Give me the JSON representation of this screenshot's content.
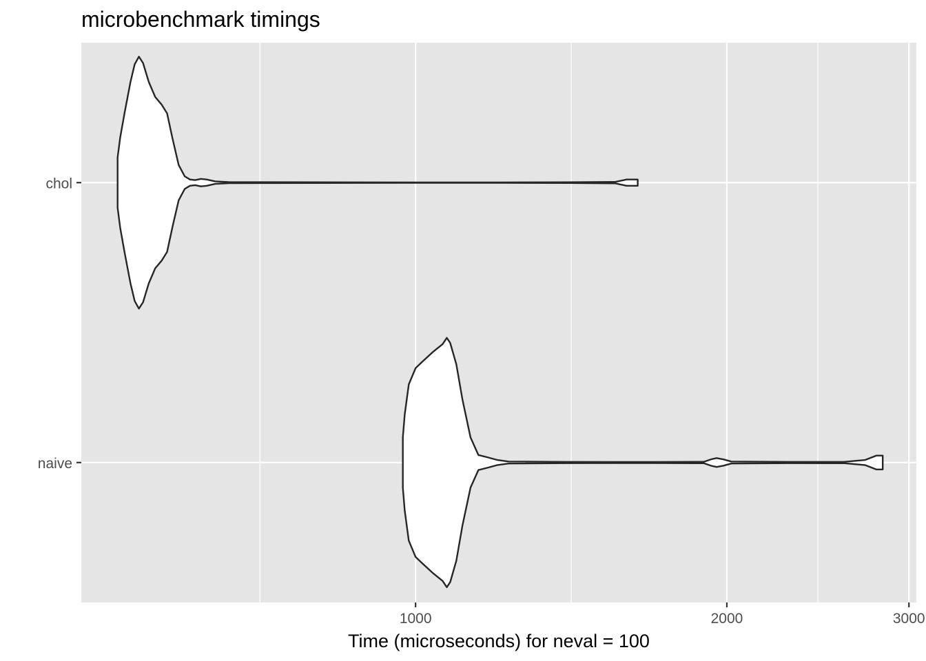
{
  "chart_data": {
    "type": "violin",
    "title": "microbenchmark timings",
    "xlabel": "Time (microseconds) for neval = 100",
    "ylabel": "",
    "x_scale": "log10",
    "xlim": [
      475,
      3050
    ],
    "x_ticks": [
      1000,
      2000,
      3000
    ],
    "x_tick_labels": [
      "1000",
      "2000",
      "3000"
    ],
    "categories": [
      "chol",
      "naive"
    ],
    "grid": true,
    "colors": {
      "panel": "#e5e5e5",
      "grid": "#ffffff",
      "fill": "#ffffff",
      "outline": "#262626"
    },
    "series": [
      {
        "name": "chol",
        "range": [
          515,
          1640
        ],
        "profile": [
          [
            515,
            0.2
          ],
          [
            518,
            0.36
          ],
          [
            523,
            0.55
          ],
          [
            530,
            0.8
          ],
          [
            535,
            0.94
          ],
          [
            540,
            1.0
          ],
          [
            545,
            0.95
          ],
          [
            552,
            0.8
          ],
          [
            560,
            0.68
          ],
          [
            568,
            0.62
          ],
          [
            575,
            0.55
          ],
          [
            582,
            0.35
          ],
          [
            590,
            0.14
          ],
          [
            598,
            0.05
          ],
          [
            605,
            0.025
          ],
          [
            612,
            0.02
          ],
          [
            620,
            0.03
          ],
          [
            628,
            0.025
          ],
          [
            640,
            0.01
          ],
          [
            660,
            0.004
          ],
          [
            800,
            0.003
          ],
          [
            1000,
            0.002
          ],
          [
            1200,
            0.002
          ],
          [
            1400,
            0.003
          ],
          [
            1560,
            0.006
          ],
          [
            1600,
            0.025
          ],
          [
            1640,
            0.025
          ]
        ]
      },
      {
        "name": "naive",
        "range": [
          972,
          2830
        ],
        "profile": [
          [
            972,
            0.2
          ],
          [
            976,
            0.38
          ],
          [
            985,
            0.62
          ],
          [
            1000,
            0.75
          ],
          [
            1015,
            0.8
          ],
          [
            1040,
            0.88
          ],
          [
            1062,
            0.94
          ],
          [
            1072,
            0.99
          ],
          [
            1080,
            0.95
          ],
          [
            1095,
            0.78
          ],
          [
            1110,
            0.5
          ],
          [
            1130,
            0.2
          ],
          [
            1150,
            0.06
          ],
          [
            1175,
            0.04
          ],
          [
            1200,
            0.02
          ],
          [
            1230,
            0.008
          ],
          [
            1400,
            0.005
          ],
          [
            1700,
            0.004
          ],
          [
            1900,
            0.006
          ],
          [
            1930,
            0.025
          ],
          [
            1955,
            0.035
          ],
          [
            1985,
            0.025
          ],
          [
            2020,
            0.008
          ],
          [
            2300,
            0.005
          ],
          [
            2600,
            0.006
          ],
          [
            2720,
            0.02
          ],
          [
            2790,
            0.055
          ],
          [
            2830,
            0.055
          ]
        ]
      }
    ]
  }
}
